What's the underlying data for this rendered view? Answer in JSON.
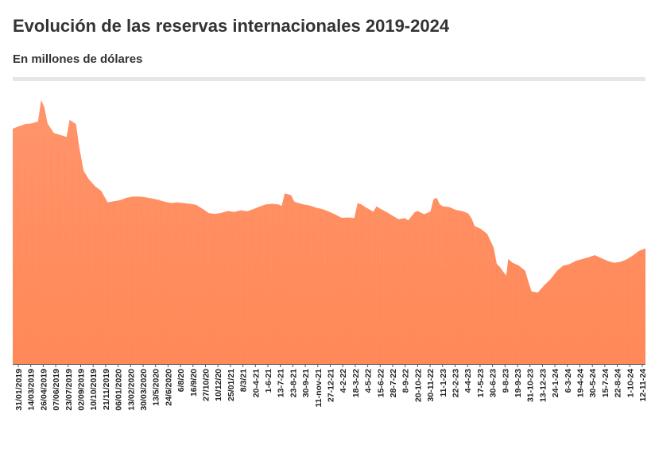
{
  "header": {
    "title": "Evolución de las reservas internacionales 2019-2024",
    "subtitle": "En millones de dólares"
  },
  "colors": {
    "fill": "#ff9166",
    "fill_dark": "#ff7a45",
    "axis": "#555555",
    "rule": "#e6e6e6",
    "text": "#333333"
  },
  "chart_data": {
    "type": "area",
    "title": "Evolución de las reservas internacionales 2019-2024",
    "subtitle": "En millones de dólares",
    "xlabel": "",
    "ylabel": "",
    "grid": false,
    "legend": "none",
    "y_axis_shown": false,
    "ylim": [
      0,
      77000
    ],
    "categories": [
      "31/01/2019",
      "14/03/2019",
      "26/04/2019",
      "07/06/2019",
      "23/07/2019",
      "02/09/2019",
      "10/10/2019",
      "21/11/2019",
      "06/01/2020",
      "13/02/2020",
      "30/03/2020",
      "13/5/2020",
      "24/6/2020",
      "6/8/20",
      "16/9/20",
      "27/10/20",
      "10/12/20",
      "25/01/21",
      "8/3/21",
      "20-4-21",
      "1-6-21",
      "13-7-21",
      "23-8-21",
      "30-9-21",
      "11-nov-21",
      "27-12-21",
      "4-2-22",
      "18-3-22",
      "4-5-22",
      "15-6-22",
      "28-7-22",
      "8-9-22",
      "20-10-22",
      "30-11-22",
      "11-1-23",
      "22-2-23",
      "4-4-23",
      "17-5-23",
      "30-6-23",
      "9-8-23",
      "19-9-23",
      "31-10-23",
      "13-12-23",
      "24-1-24",
      "6-3-24",
      "19-4-24",
      "30-5-24",
      "15-7-24",
      "22-8-24",
      "1-10-24",
      "12-11-24"
    ],
    "series": [
      {
        "name": "",
        "points": [
          [
            0.0,
            65500
          ],
          [
            0.01,
            66200
          ],
          [
            0.02,
            66800
          ],
          [
            0.03,
            67000
          ],
          [
            0.04,
            67500
          ],
          [
            0.045,
            73500
          ],
          [
            0.05,
            71500
          ],
          [
            0.055,
            67000
          ],
          [
            0.065,
            64300
          ],
          [
            0.075,
            63800
          ],
          [
            0.085,
            63200
          ],
          [
            0.09,
            68000
          ],
          [
            0.1,
            66800
          ],
          [
            0.105,
            60500
          ],
          [
            0.112,
            53800
          ],
          [
            0.12,
            51500
          ],
          [
            0.13,
            49500
          ],
          [
            0.14,
            48200
          ],
          [
            0.15,
            45000
          ],
          [
            0.16,
            45300
          ],
          [
            0.17,
            45600
          ],
          [
            0.18,
            46300
          ],
          [
            0.19,
            46600
          ],
          [
            0.2,
            46600
          ],
          [
            0.21,
            46400
          ],
          [
            0.22,
            46100
          ],
          [
            0.23,
            45700
          ],
          [
            0.24,
            45200
          ],
          [
            0.25,
            44800
          ],
          [
            0.26,
            45000
          ],
          [
            0.27,
            44800
          ],
          [
            0.28,
            44600
          ],
          [
            0.29,
            44300
          ],
          [
            0.3,
            43200
          ],
          [
            0.31,
            42000
          ],
          [
            0.32,
            41800
          ],
          [
            0.33,
            42100
          ],
          [
            0.34,
            42600
          ],
          [
            0.35,
            42300
          ],
          [
            0.36,
            42800
          ],
          [
            0.37,
            42500
          ],
          [
            0.38,
            43100
          ],
          [
            0.39,
            43800
          ],
          [
            0.4,
            44400
          ],
          [
            0.41,
            44600
          ],
          [
            0.42,
            44400
          ],
          [
            0.425,
            44000
          ],
          [
            0.43,
            47500
          ],
          [
            0.44,
            47000
          ],
          [
            0.445,
            45200
          ],
          [
            0.45,
            44900
          ],
          [
            0.46,
            44400
          ],
          [
            0.47,
            44100
          ],
          [
            0.48,
            43500
          ],
          [
            0.49,
            43100
          ],
          [
            0.5,
            42400
          ],
          [
            0.51,
            41600
          ],
          [
            0.52,
            40700
          ],
          [
            0.53,
            40800
          ],
          [
            0.54,
            40600
          ],
          [
            0.545,
            44800
          ],
          [
            0.55,
            44500
          ],
          [
            0.56,
            43400
          ],
          [
            0.57,
            42400
          ],
          [
            0.575,
            43900
          ],
          [
            0.58,
            43300
          ],
          [
            0.59,
            42400
          ],
          [
            0.6,
            41300
          ],
          [
            0.61,
            40300
          ],
          [
            0.62,
            40600
          ],
          [
            0.625,
            40000
          ],
          [
            0.635,
            42200
          ],
          [
            0.64,
            42600
          ],
          [
            0.65,
            41700
          ],
          [
            0.66,
            42400
          ],
          [
            0.665,
            45800
          ],
          [
            0.67,
            46300
          ],
          [
            0.675,
            44400
          ],
          [
            0.68,
            43900
          ],
          [
            0.69,
            43700
          ],
          [
            0.7,
            42900
          ],
          [
            0.71,
            42600
          ],
          [
            0.72,
            41900
          ],
          [
            0.725,
            40600
          ],
          [
            0.73,
            38400
          ],
          [
            0.74,
            37600
          ],
          [
            0.75,
            36200
          ],
          [
            0.76,
            32400
          ],
          [
            0.765,
            27900
          ],
          [
            0.77,
            27000
          ],
          [
            0.775,
            25700
          ],
          [
            0.78,
            24600
          ],
          [
            0.783,
            29200
          ],
          [
            0.79,
            28200
          ],
          [
            0.8,
            27400
          ],
          [
            0.81,
            25900
          ],
          [
            0.815,
            22900
          ],
          [
            0.82,
            20200
          ],
          [
            0.83,
            19900
          ],
          [
            0.84,
            21900
          ],
          [
            0.85,
            23600
          ],
          [
            0.86,
            25900
          ],
          [
            0.87,
            27400
          ],
          [
            0.88,
            27800
          ],
          [
            0.89,
            28700
          ],
          [
            0.9,
            29200
          ],
          [
            0.91,
            29700
          ],
          [
            0.92,
            30300
          ],
          [
            0.93,
            29500
          ],
          [
            0.94,
            28700
          ],
          [
            0.95,
            28200
          ],
          [
            0.96,
            28400
          ],
          [
            0.97,
            29100
          ],
          [
            0.98,
            30200
          ],
          [
            0.99,
            31500
          ],
          [
            1.0,
            32200
          ]
        ]
      }
    ]
  }
}
